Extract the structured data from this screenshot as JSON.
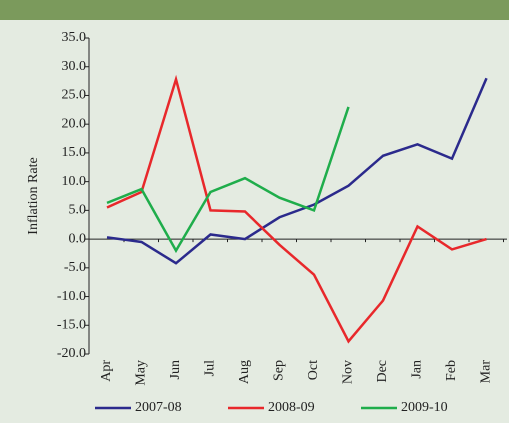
{
  "chart_data": {
    "type": "line",
    "y_label": "Inflation Rate",
    "categories": [
      "Apr",
      "May",
      "Jun",
      "Jul",
      "Aug",
      "Sep",
      "Oct",
      "Nov",
      "Dec",
      "Jan",
      "Feb",
      "Mar"
    ],
    "series": [
      {
        "name": "2007-08",
        "color": "#2b2a8c",
        "values": [
          0.3,
          -0.5,
          -4.2,
          0.8,
          0,
          3.8,
          6,
          9.3,
          14.5,
          16.5,
          14,
          28
        ]
      },
      {
        "name": "2008-09",
        "color": "#e8282b",
        "values": [
          5.5,
          8.2,
          27.8,
          5,
          4.8,
          -1,
          -6.2,
          -17.8,
          -10.7,
          2.2,
          -1.8,
          0
        ]
      },
      {
        "name": "2009-10",
        "color": "#1fad4b",
        "values": [
          6.3,
          8.7,
          -2,
          8.2,
          10.6,
          7.2,
          5,
          23,
          null,
          null,
          null,
          null
        ]
      }
    ],
    "ylim": [
      -20,
      35
    ],
    "yticks": [
      {
        "value": -20,
        "label": "-20.0"
      },
      {
        "value": -15,
        "label": "-15.0"
      },
      {
        "value": -10,
        "label": "-10.0"
      },
      {
        "value": -5,
        "label": "-5.0"
      },
      {
        "value": 0,
        "label": "0.0"
      },
      {
        "value": 5,
        "label": "5.0"
      },
      {
        "value": 10,
        "label": "10.0"
      },
      {
        "value": 15,
        "label": "15.0"
      },
      {
        "value": 20,
        "label": "20.0"
      },
      {
        "value": 25,
        "label": "25.0"
      },
      {
        "value": 30,
        "label": "30.0"
      },
      {
        "value": 35,
        "label": "35.0"
      }
    ],
    "legend": "bottom"
  }
}
